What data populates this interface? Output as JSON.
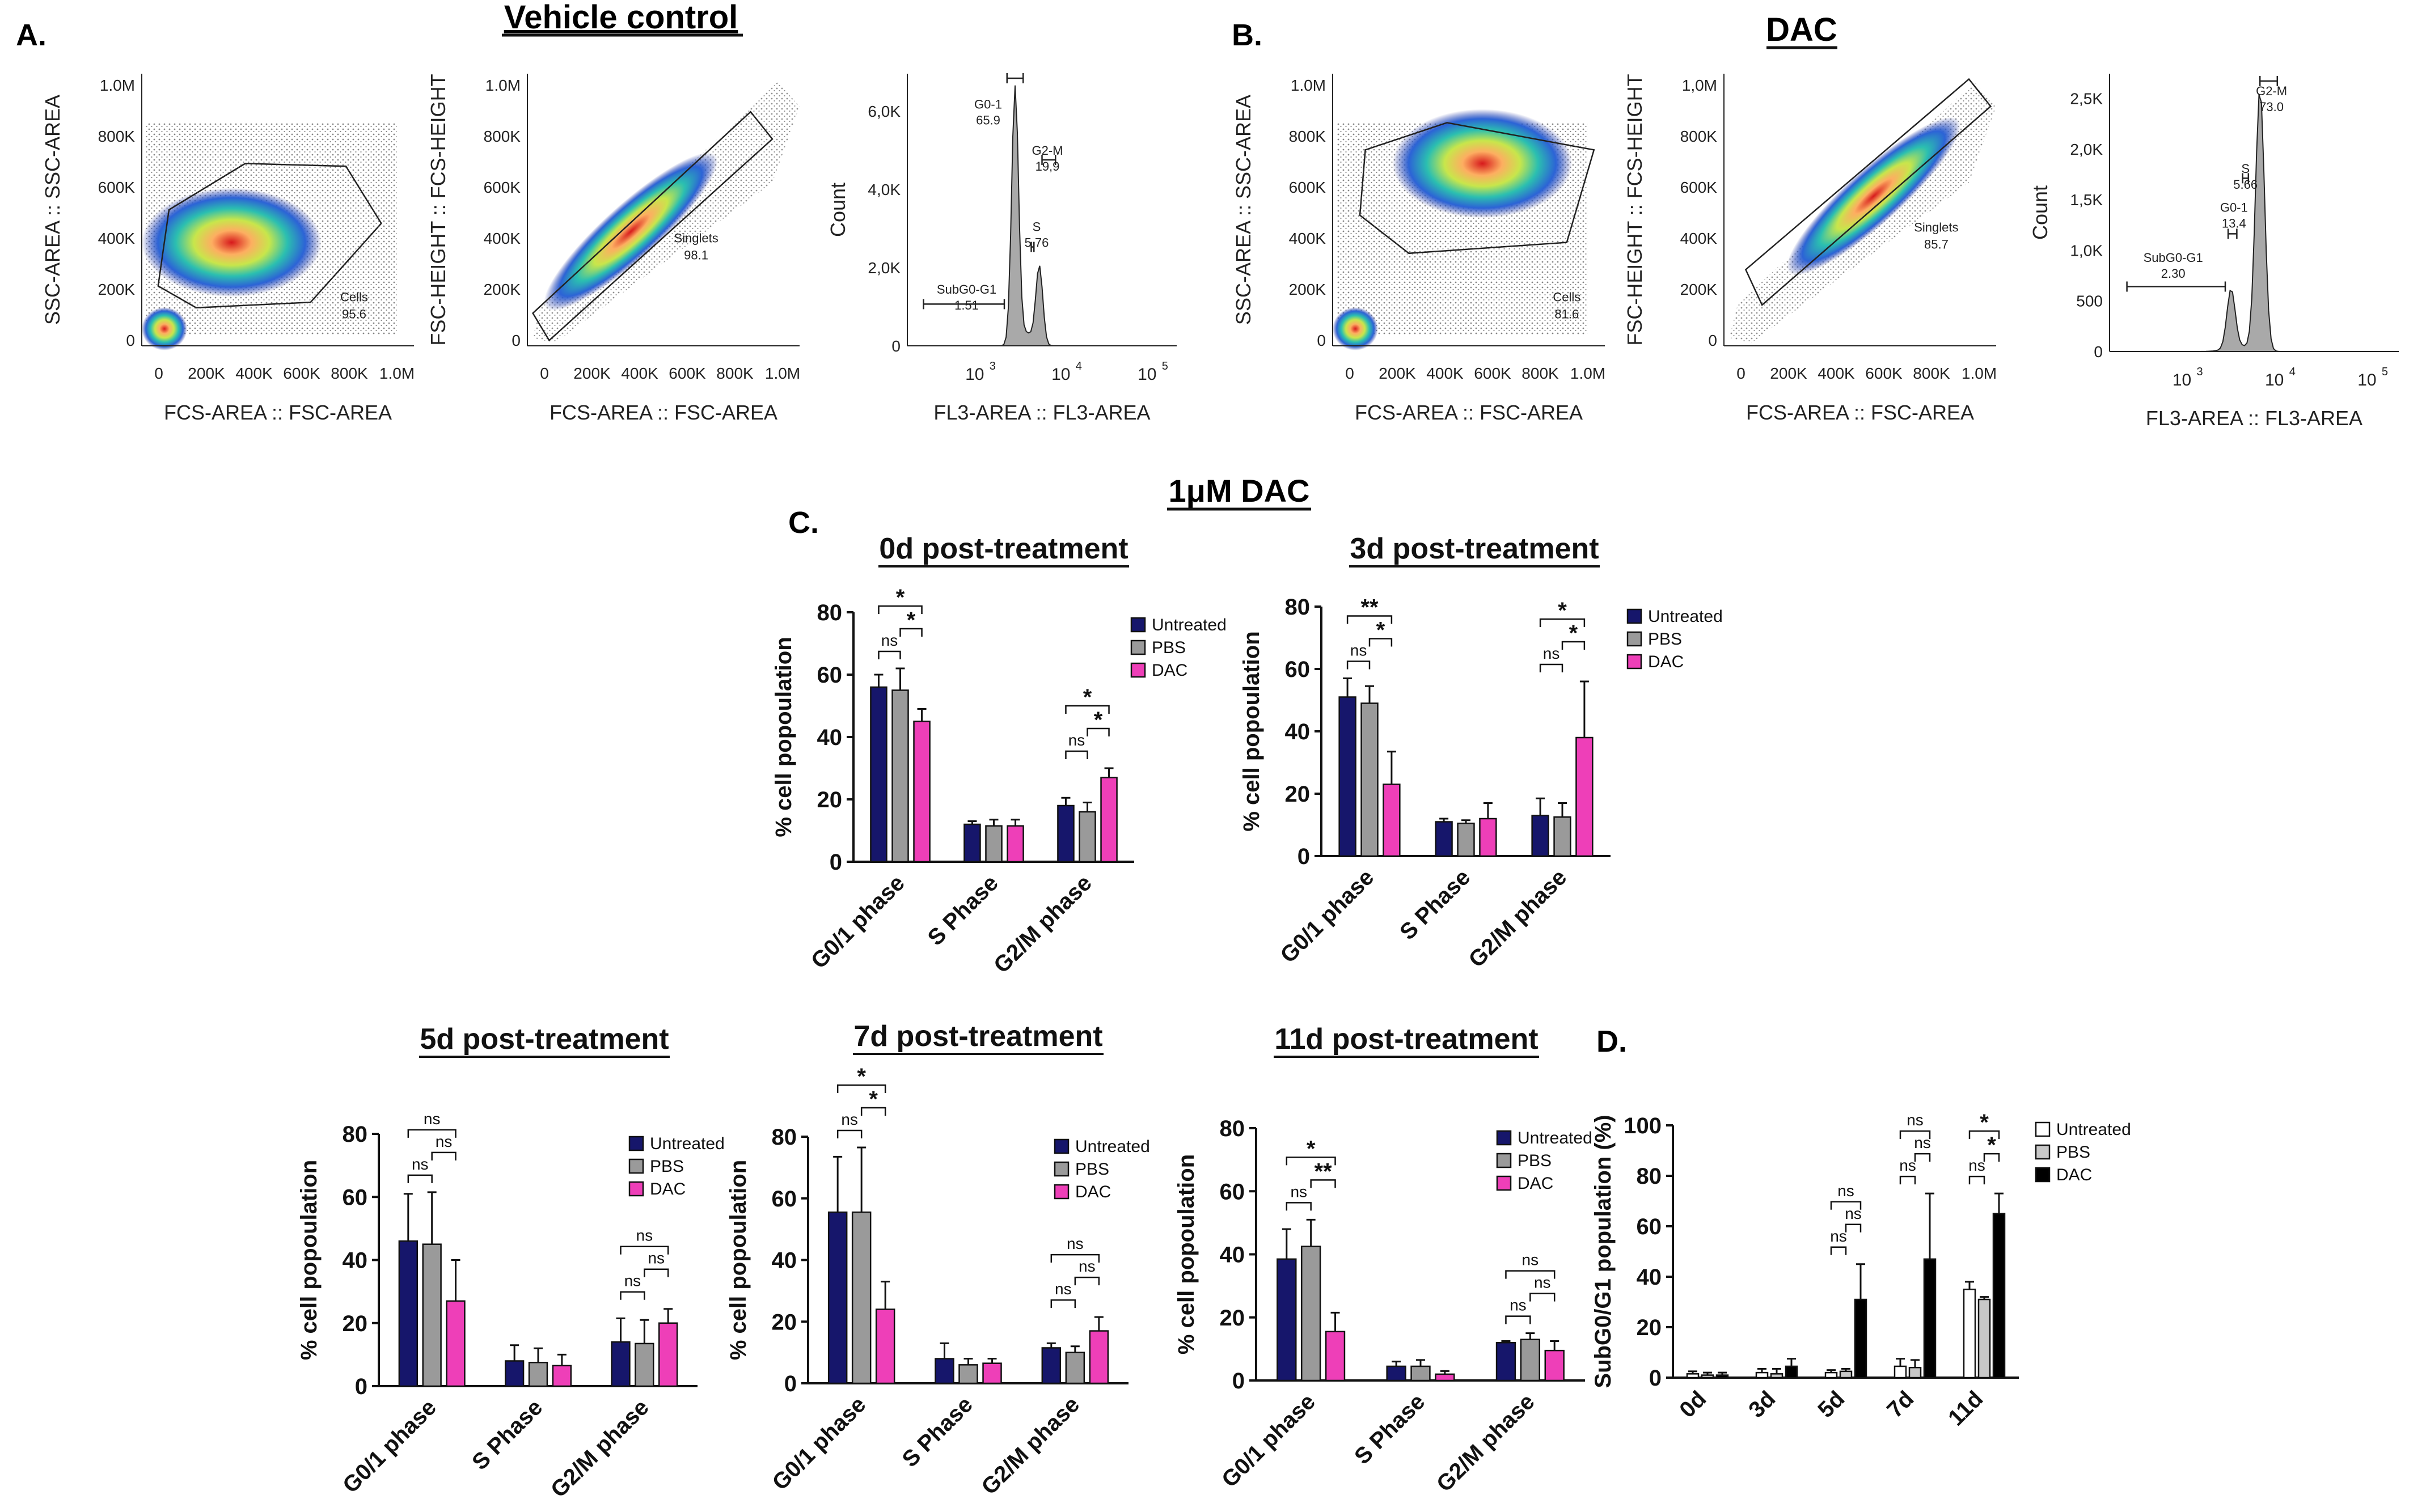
{
  "figure": {
    "panel_labels": {
      "A": "A.",
      "B": "B.",
      "C": "C.",
      "D": "D."
    },
    "section_titles": {
      "vehicle": "Vehicle control",
      "dac": "DAC",
      "dose": "1μM DAC"
    }
  },
  "colors": {
    "untreated": "#16166b",
    "pbs": "#9a9a9a",
    "dac": "#ee3fb8",
    "d_untreated": "#ffffff",
    "d_pbs": "#c8c8c8",
    "d_dac": "#000000",
    "histogram_fill": "#a9a9a9"
  },
  "flow": {
    "vehicle": {
      "scatter1": {
        "xlabel": "FCS-AREA :: FSC-AREA",
        "ylabel": "SSC-AREA :: SSC-AREA",
        "xticks": [
          "0",
          "200K",
          "400K",
          "600K",
          "800K",
          "1.0M"
        ],
        "yticks": [
          "0",
          "200K",
          "400K",
          "600K",
          "800K",
          "1.0M"
        ],
        "gate_name": "Cells",
        "gate_value": "95.6"
      },
      "scatter2": {
        "xlabel": "FCS-AREA :: FSC-AREA",
        "ylabel": "FSC-HEIGHT :: FCS-HEIGHT",
        "xticks": [
          "0",
          "200K",
          "400K",
          "600K",
          "800K",
          "1.0M"
        ],
        "yticks": [
          "0",
          "200K",
          "400K",
          "600K",
          "800K",
          "1.0M"
        ],
        "gate_name": "Singlets",
        "gate_value": "98.1"
      },
      "histogram": {
        "xlabel": "FL3-AREA :: FL3-AREA",
        "ylabel": "Count",
        "yticks": [
          "0",
          "2,0K",
          "4,0K",
          "6,0K"
        ],
        "xticks": [
          "10",
          "10",
          "10"
        ],
        "xexp": [
          "3",
          "4",
          "5"
        ],
        "gates": [
          {
            "name": "G0-1",
            "value": "65.9"
          },
          {
            "name": "G2-M",
            "value": "19,9"
          },
          {
            "name": "S",
            "value": "5,76"
          },
          {
            "name": "SubG0-G1",
            "value": "1.51"
          }
        ]
      }
    },
    "dac": {
      "scatter1": {
        "xlabel": "FCS-AREA :: FSC-AREA",
        "ylabel": "SSC-AREA :: SSC-AREA",
        "xticks": [
          "0",
          "200K",
          "400K",
          "600K",
          "800K",
          "1.0M"
        ],
        "yticks": [
          "0",
          "200K",
          "400K",
          "600K",
          "800K",
          "1.0M"
        ],
        "gate_name": "Cells",
        "gate_value": "81.6"
      },
      "scatter2": {
        "xlabel": "FCS-AREA :: FSC-AREA",
        "ylabel": "FSC-HEIGHT :: FCS-HEIGHT",
        "xticks": [
          "0",
          "200K",
          "400K",
          "600K",
          "800K",
          "1.0M"
        ],
        "yticks": [
          "0",
          "200K",
          "400K",
          "600K",
          "800K",
          "1,0M"
        ],
        "gate_name": "Singlets",
        "gate_value": "85.7"
      },
      "histogram": {
        "xlabel": "FL3-AREA :: FL3-AREA",
        "ylabel": "Count",
        "yticks": [
          "0",
          "500",
          "1,0K",
          "1,5K",
          "2,0K",
          "2,5K"
        ],
        "xticks": [
          "10",
          "10",
          "10"
        ],
        "xexp": [
          "3",
          "4",
          "5"
        ],
        "gates": [
          {
            "name": "G2-M",
            "value": "73.0"
          },
          {
            "name": "S",
            "value": "5.66"
          },
          {
            "name": "G0-1",
            "value": "13.4"
          },
          {
            "name": "SubG0-G1",
            "value": "2.30"
          }
        ]
      }
    }
  },
  "chart_data": [
    {
      "id": "c0",
      "type": "bar",
      "title": "0d post-treatment",
      "ylabel": "% cell popoulation",
      "ylim": [
        0,
        80
      ],
      "yticks": [
        "0",
        "20",
        "40",
        "60",
        "80"
      ],
      "categories": [
        "G0/1 phase",
        "S Phase",
        "G2/M phase"
      ],
      "series": [
        {
          "name": "Untreated",
          "values": [
            56,
            12,
            18
          ],
          "errors": [
            4,
            1,
            2.5
          ]
        },
        {
          "name": "PBS",
          "values": [
            55,
            11.5,
            16
          ],
          "errors": [
            7,
            2,
            3
          ]
        },
        {
          "name": "DAC",
          "values": [
            45,
            11.5,
            27
          ],
          "errors": [
            4,
            2,
            3
          ]
        }
      ],
      "legend": [
        "Untreated",
        "PBS",
        "DAC"
      ],
      "annotations": [
        {
          "group": 0,
          "pair": [
            0,
            1
          ],
          "label": "ns"
        },
        {
          "group": 0,
          "pair": [
            1,
            2
          ],
          "label": "*"
        },
        {
          "group": 0,
          "pair": [
            0,
            2
          ],
          "label": "*"
        },
        {
          "group": 2,
          "pair": [
            0,
            1
          ],
          "label": "ns"
        },
        {
          "group": 2,
          "pair": [
            1,
            2
          ],
          "label": "*"
        },
        {
          "group": 2,
          "pair": [
            0,
            2
          ],
          "label": "*"
        }
      ]
    },
    {
      "id": "c3",
      "type": "bar",
      "title": "3d post-treatment",
      "ylabel": "% cell popoulation",
      "ylim": [
        0,
        80
      ],
      "yticks": [
        "0",
        "20",
        "40",
        "60",
        "80"
      ],
      "categories": [
        "G0/1 phase",
        "S Phase",
        "G2/M phase"
      ],
      "series": [
        {
          "name": "Untreated",
          "values": [
            51,
            11,
            13
          ],
          "errors": [
            6,
            1,
            5.5
          ]
        },
        {
          "name": "PBS",
          "values": [
            49,
            10.5,
            12.5
          ],
          "errors": [
            5.5,
            1,
            4.5
          ]
        },
        {
          "name": "DAC",
          "values": [
            23,
            12,
            38
          ],
          "errors": [
            10.5,
            5,
            18
          ]
        }
      ],
      "legend": [
        "Untreated",
        "PBS",
        "DAC"
      ],
      "annotations": [
        {
          "group": 0,
          "pair": [
            0,
            1
          ],
          "label": "ns"
        },
        {
          "group": 0,
          "pair": [
            1,
            2
          ],
          "label": "*"
        },
        {
          "group": 0,
          "pair": [
            0,
            2
          ],
          "label": "**"
        },
        {
          "group": 2,
          "pair": [
            0,
            1
          ],
          "label": "ns"
        },
        {
          "group": 2,
          "pair": [
            1,
            2
          ],
          "label": "*"
        },
        {
          "group": 2,
          "pair": [
            0,
            2
          ],
          "label": "*"
        }
      ]
    },
    {
      "id": "c5",
      "type": "bar",
      "title": "5d post-treatment",
      "ylabel": "% cell popoulation",
      "ylim": [
        0,
        80
      ],
      "yticks": [
        "0",
        "20",
        "40",
        "60",
        "80"
      ],
      "categories": [
        "G0/1 phase",
        "S Phase",
        "G2/M phase"
      ],
      "series": [
        {
          "name": "Untreated",
          "values": [
            46,
            8,
            14
          ],
          "errors": [
            15,
            5,
            7.5
          ]
        },
        {
          "name": "PBS",
          "values": [
            45,
            7.5,
            13.5
          ],
          "errors": [
            16.5,
            4.5,
            7.5
          ]
        },
        {
          "name": "DAC",
          "values": [
            27,
            6.5,
            20
          ],
          "errors": [
            13,
            3.5,
            4.5
          ]
        }
      ],
      "legend": [
        "Untreated",
        "PBS",
        "DAC"
      ],
      "annotations": [
        {
          "group": 0,
          "pair": [
            0,
            1
          ],
          "label": "ns"
        },
        {
          "group": 0,
          "pair": [
            1,
            2
          ],
          "label": "ns"
        },
        {
          "group": 0,
          "pair": [
            0,
            2
          ],
          "label": "ns"
        },
        {
          "group": 2,
          "pair": [
            0,
            1
          ],
          "label": "ns"
        },
        {
          "group": 2,
          "pair": [
            1,
            2
          ],
          "label": "ns"
        },
        {
          "group": 2,
          "pair": [
            0,
            2
          ],
          "label": "ns"
        }
      ]
    },
    {
      "id": "c7",
      "type": "bar",
      "title": "7d post-treatment",
      "ylabel": "% cell popoulation",
      "ylim": [
        0,
        80
      ],
      "yticks": [
        "0",
        "20",
        "40",
        "60",
        "80"
      ],
      "categories": [
        "G0/1 phase",
        "S Phase",
        "G2/M phase"
      ],
      "series": [
        {
          "name": "Untreated",
          "values": [
            55.5,
            8,
            11.5
          ],
          "errors": [
            18,
            5,
            1.5
          ]
        },
        {
          "name": "PBS",
          "values": [
            55.5,
            6,
            10
          ],
          "errors": [
            21,
            2,
            2
          ]
        },
        {
          "name": "DAC",
          "values": [
            24,
            6.5,
            17
          ],
          "errors": [
            9,
            1.5,
            4.5
          ]
        }
      ],
      "legend": [
        "Untreated",
        "PBS",
        "DAC"
      ],
      "annotations": [
        {
          "group": 0,
          "pair": [
            0,
            1
          ],
          "label": "ns"
        },
        {
          "group": 0,
          "pair": [
            1,
            2
          ],
          "label": "*"
        },
        {
          "group": 0,
          "pair": [
            0,
            2
          ],
          "label": "*"
        },
        {
          "group": 2,
          "pair": [
            0,
            1
          ],
          "label": "ns"
        },
        {
          "group": 2,
          "pair": [
            1,
            2
          ],
          "label": "ns"
        },
        {
          "group": 2,
          "pair": [
            0,
            2
          ],
          "label": "ns"
        }
      ]
    },
    {
      "id": "c11",
      "type": "bar",
      "title": "11d post-treatment",
      "ylabel": "% cell popoulation",
      "ylim": [
        0,
        80
      ],
      "yticks": [
        "0",
        "20",
        "40",
        "60",
        "80"
      ],
      "categories": [
        "G0/1 phase",
        "S Phase",
        "G2/M phase"
      ],
      "series": [
        {
          "name": "Untreated",
          "values": [
            38.5,
            4.5,
            12
          ],
          "errors": [
            9.5,
            1.5,
            0.5
          ]
        },
        {
          "name": "PBS",
          "values": [
            42.5,
            4.5,
            13
          ],
          "errors": [
            8.5,
            2,
            2
          ]
        },
        {
          "name": "DAC",
          "values": [
            15.5,
            2,
            9.5
          ],
          "errors": [
            6,
            1,
            3
          ]
        }
      ],
      "legend": [
        "Untreated",
        "PBS",
        "DAC"
      ],
      "annotations": [
        {
          "group": 0,
          "pair": [
            0,
            1
          ],
          "label": "ns"
        },
        {
          "group": 0,
          "pair": [
            1,
            2
          ],
          "label": "**"
        },
        {
          "group": 0,
          "pair": [
            0,
            2
          ],
          "label": "*"
        },
        {
          "group": 2,
          "pair": [
            0,
            1
          ],
          "label": "ns"
        },
        {
          "group": 2,
          "pair": [
            1,
            2
          ],
          "label": "ns"
        },
        {
          "group": 2,
          "pair": [
            0,
            2
          ],
          "label": "ns"
        }
      ]
    },
    {
      "id": "d",
      "type": "bar",
      "title": "",
      "ylabel": "SubG0/G1 population (%)",
      "ylim": [
        0,
        100
      ],
      "yticks": [
        "0",
        "20",
        "40",
        "60",
        "80",
        "100"
      ],
      "categories": [
        "0d",
        "3d",
        "5d",
        "7d",
        "11d"
      ],
      "series": [
        {
          "name": "Untreated",
          "values": [
            1.5,
            2,
            2,
            4.5,
            35
          ],
          "errors": [
            1,
            1.5,
            1,
            3,
            3
          ]
        },
        {
          "name": "PBS",
          "values": [
            1,
            1.5,
            2.5,
            4,
            31
          ],
          "errors": [
            1,
            2,
            1,
            3,
            1
          ]
        },
        {
          "name": "DAC",
          "values": [
            1,
            4.5,
            31,
            47,
            65
          ],
          "errors": [
            1,
            3,
            14,
            26,
            8
          ]
        }
      ],
      "legend": [
        "Untreated",
        "PBS",
        "DAC"
      ],
      "annotations": [
        {
          "group": 2,
          "pair": [
            0,
            1
          ],
          "label": "ns"
        },
        {
          "group": 2,
          "pair": [
            1,
            2
          ],
          "label": "ns"
        },
        {
          "group": 2,
          "pair": [
            0,
            2
          ],
          "label": "ns"
        },
        {
          "group": 3,
          "pair": [
            0,
            1
          ],
          "label": "ns"
        },
        {
          "group": 3,
          "pair": [
            1,
            2
          ],
          "label": "ns"
        },
        {
          "group": 3,
          "pair": [
            0,
            2
          ],
          "label": "ns"
        },
        {
          "group": 4,
          "pair": [
            0,
            1
          ],
          "label": "ns"
        },
        {
          "group": 4,
          "pair": [
            1,
            2
          ],
          "label": "*"
        },
        {
          "group": 4,
          "pair": [
            0,
            2
          ],
          "label": "*"
        }
      ]
    }
  ]
}
